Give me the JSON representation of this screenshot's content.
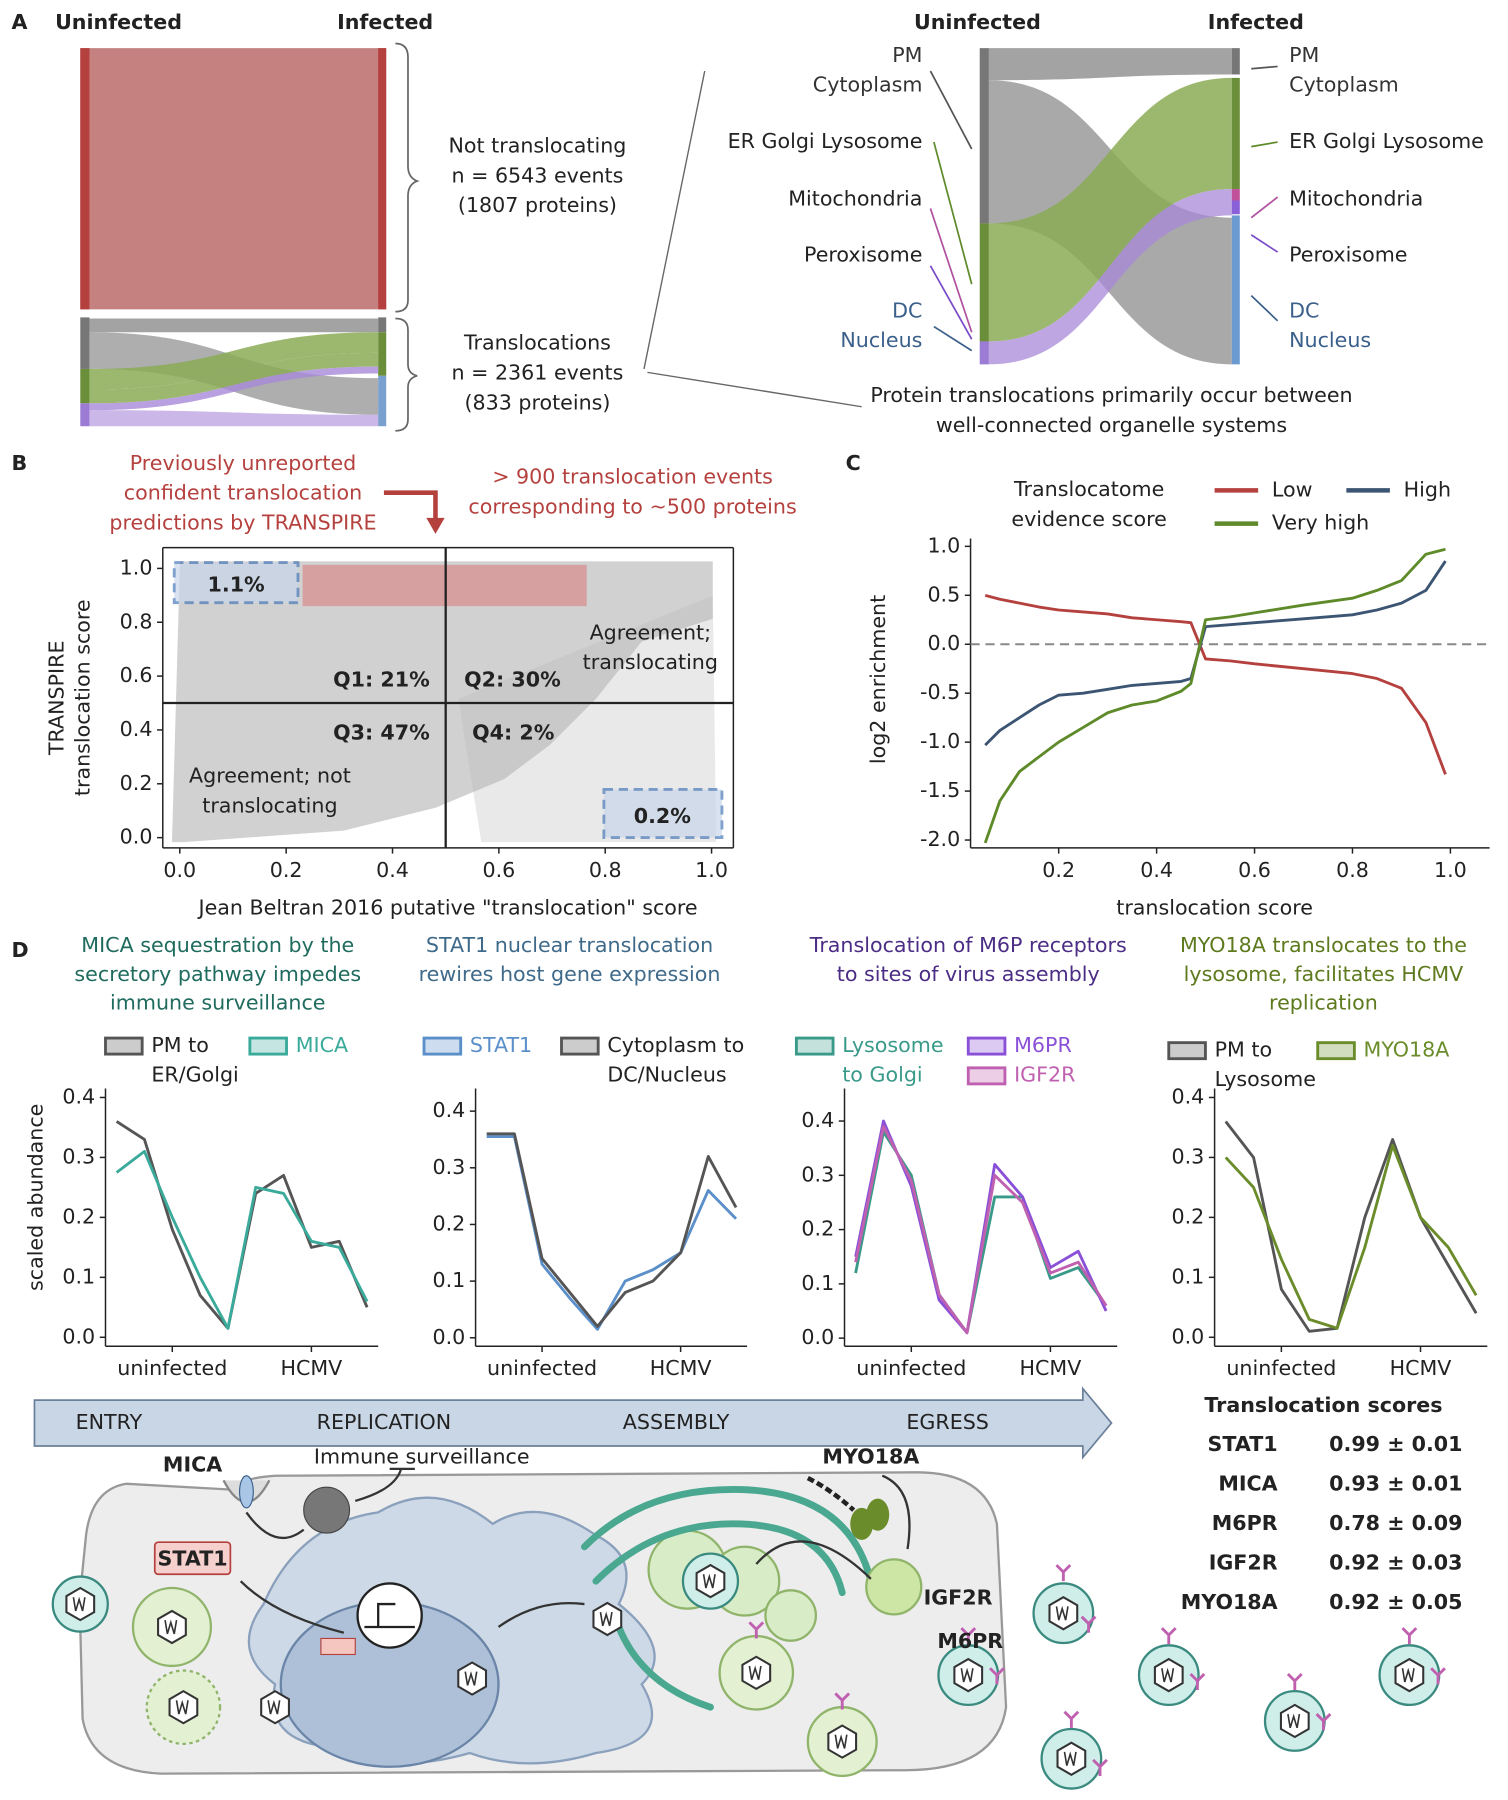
{
  "panel_labels": [
    "A",
    "B",
    "C",
    "D"
  ],
  "panel_a": {
    "left_headers": [
      "Uninfected",
      "Infected"
    ],
    "not_translocating": {
      "title": "Not translocating",
      "events": "n = 6543 events",
      "proteins": "(1807 proteins)",
      "color": "#b5413f"
    },
    "translocations": {
      "title": "Translocations",
      "events": "n = 2361 events",
      "proteins": "(833 proteins)",
      "color": "#3a5f8a"
    },
    "right_headers": [
      "Uninfected",
      "Infected"
    ],
    "compartments": [
      {
        "label": "PM Cytoplasm",
        "color": "#333333"
      },
      {
        "label": "ER Golgi Lysosome",
        "color": "#5e8a2a"
      },
      {
        "label": "Mitochondria",
        "color": "#b050a0"
      },
      {
        "label": "Peroxisome",
        "color": "#7a4cc8"
      },
      {
        "label": "DC Nucleus",
        "color": "#3a5f8a"
      }
    ],
    "caption": "Protein translocations primarily occur between well-connected organelle systems"
  },
  "chart_data": [
    {
      "type": "scatter",
      "xlabel": "Jean Beltran 2016 putative \"translocation\" score",
      "ylabel": [
        "TRANSPIRE",
        "translocation score"
      ],
      "xlim": [
        -0.032,
        1.041
      ],
      "ylim": [
        -0.038,
        1.077
      ],
      "xticks": [
        {
          "value": 0,
          "label": "0.0"
        },
        0.2,
        0.4,
        0.6,
        0.8,
        {
          "value": 1,
          "label": "1.0"
        }
      ],
      "yticks": [
        {
          "value": 0,
          "label": "0.0"
        },
        0.2,
        0.4,
        0.6,
        0.8,
        {
          "value": 1,
          "label": "1.0"
        }
      ],
      "quadrant_lines": {
        "x": 0.5,
        "y": 0.5
      },
      "quadrant_labels": [
        "Q1: 21%",
        "Q2: 30%",
        "Q3: 47%",
        "Q4: 2%"
      ],
      "corner_labels": [
        "1.1%",
        "0.2%"
      ],
      "agreement_labels": [
        "Agreement; translocating",
        "Agreement; not translocating"
      ],
      "notes": [
        "Previously unreported confident translocation predictions by TRANSPIRE",
        "> 900 translocation events corresponding to ~500 proteins"
      ]
    },
    {
      "type": "line",
      "xlabel": "translocation score",
      "ylabel": "log2 enrichment",
      "legend_title": "Translocatome evidence score",
      "x": [
        0.05,
        0.08,
        0.12,
        0.16,
        0.2,
        0.25,
        0.3,
        0.35,
        0.4,
        0.45,
        0.47,
        0.5,
        0.55,
        0.6,
        0.7,
        0.8,
        0.85,
        0.9,
        0.95,
        0.99
      ],
      "series": [
        {
          "name": "Low",
          "color": "#b5413f",
          "values": [
            0.5,
            0.46,
            0.42,
            0.38,
            0.35,
            0.33,
            0.31,
            0.27,
            0.25,
            0.23,
            0.22,
            -0.15,
            -0.17,
            -0.2,
            -0.25,
            -0.3,
            -0.35,
            -0.45,
            -0.8,
            -1.33
          ]
        },
        {
          "name": "High",
          "color": "#3c5573",
          "values": [
            -1.03,
            -0.88,
            -0.75,
            -0.62,
            -0.52,
            -0.5,
            -0.46,
            -0.42,
            -0.4,
            -0.38,
            -0.35,
            0.18,
            0.2,
            0.22,
            0.26,
            0.3,
            0.35,
            0.42,
            0.55,
            0.85
          ]
        },
        {
          "name": "Very high",
          "color": "#5e8a2a",
          "values": [
            -2.03,
            -1.6,
            -1.3,
            -1.15,
            -1.0,
            -0.85,
            -0.7,
            -0.62,
            -0.58,
            -0.48,
            -0.4,
            0.25,
            0.28,
            0.32,
            0.4,
            0.47,
            0.55,
            0.65,
            0.92,
            0.97
          ]
        }
      ],
      "xlim": [
        0.02,
        1.08
      ],
      "ylim": [
        -2.08,
        1.08
      ],
      "xticks": [
        0.2,
        0.4,
        0.6,
        0.8,
        {
          "value": 1,
          "label": "1.0"
        }
      ],
      "yticks": [
        {
          "value": 1,
          "label": "1.0"
        },
        0.5,
        {
          "value": 0,
          "label": "0.0"
        },
        -0.5,
        {
          "value": -1,
          "label": "-1.0"
        },
        -1.5,
        {
          "value": -2,
          "label": "-2.0"
        }
      ],
      "hline": 0
    },
    {
      "type": "line",
      "title": "MICA sequestration by the secretory pathway impedes immune surveillance",
      "title_color": "#1f6b5e",
      "ylabel": "scaled abundance",
      "x": [
        1,
        2,
        3,
        4,
        5,
        6,
        7,
        8,
        9,
        10
      ],
      "series": [
        {
          "name": "PM to ER/Golgi",
          "color": "#555555",
          "values": [
            0.36,
            0.33,
            0.18,
            0.07,
            0.015,
            0.24,
            0.27,
            0.15,
            0.16,
            0.05
          ]
        },
        {
          "name": "MICA",
          "color": "#3aaa9a",
          "values": [
            0.275,
            0.31,
            0.2,
            0.1,
            0.015,
            0.25,
            0.24,
            0.16,
            0.15,
            0.06
          ]
        }
      ],
      "xlim": [
        0.6,
        10.4
      ],
      "ylim": [
        -0.015,
        0.415
      ],
      "xticks": [
        {
          "value": 3,
          "label": "uninfected"
        },
        {
          "value": 8,
          "label": "HCMV"
        }
      ],
      "yticks": [
        {
          "value": 0,
          "label": "0.0"
        },
        0.1,
        0.2,
        0.3,
        0.4
      ]
    },
    {
      "type": "line",
      "title": "STAT1 nuclear translocation rewires host gene expression",
      "title_color": "#3f6a8a",
      "x": [
        1,
        2,
        3,
        4,
        5,
        6,
        7,
        8,
        9,
        10
      ],
      "series": [
        {
          "name": "STAT1",
          "color": "#5b8fc9",
          "values": [
            0.355,
            0.355,
            0.13,
            0.07,
            0.015,
            0.1,
            0.12,
            0.15,
            0.26,
            0.21
          ]
        },
        {
          "name": "Cytoplasm to DC/Nucleus",
          "color": "#555555",
          "values": [
            0.36,
            0.36,
            0.14,
            0.08,
            0.02,
            0.08,
            0.1,
            0.15,
            0.32,
            0.23
          ]
        }
      ],
      "xlim": [
        0.6,
        10.4
      ],
      "ylim": [
        -0.015,
        0.44
      ],
      "xticks": [
        {
          "value": 3,
          "label": "uninfected"
        },
        {
          "value": 8,
          "label": "HCMV"
        }
      ],
      "yticks": [
        {
          "value": 0,
          "label": "0.0"
        },
        0.1,
        0.2,
        0.3,
        0.4
      ]
    },
    {
      "type": "line",
      "title": "Translocation of M6P receptors to sites of virus assembly",
      "title_color": "#4b2d85",
      "x": [
        1,
        2,
        3,
        4,
        5,
        6,
        7,
        8,
        9,
        10
      ],
      "series": [
        {
          "name": "Lysosome to Golgi",
          "color": "#3a9a8a",
          "values": [
            0.12,
            0.38,
            0.3,
            0.08,
            0.01,
            0.26,
            0.26,
            0.11,
            0.13,
            0.06
          ]
        },
        {
          "name": "M6PR",
          "color": "#8a50d8",
          "values": [
            0.15,
            0.4,
            0.28,
            0.07,
            0.01,
            0.32,
            0.26,
            0.13,
            0.16,
            0.05
          ]
        },
        {
          "name": "IGF2R",
          "color": "#c060b0",
          "values": [
            0.14,
            0.39,
            0.29,
            0.08,
            0.01,
            0.3,
            0.25,
            0.12,
            0.14,
            0.06
          ]
        }
      ],
      "xlim": [
        0.6,
        10.4
      ],
      "ylim": [
        -0.015,
        0.46
      ],
      "xticks": [
        {
          "value": 3,
          "label": "uninfected"
        },
        {
          "value": 8,
          "label": "HCMV"
        }
      ],
      "yticks": [
        {
          "value": 0,
          "label": "0.0"
        },
        0.1,
        0.2,
        0.3,
        0.4
      ]
    },
    {
      "type": "line",
      "title": "MYO18A translocates to the lysosome, facilitates HCMV replication",
      "title_color": "#5e7a1e",
      "x": [
        1,
        2,
        3,
        4,
        5,
        6,
        7,
        8,
        9,
        10
      ],
      "series": [
        {
          "name": "PM to Lysosome",
          "color": "#555555",
          "values": [
            0.36,
            0.3,
            0.08,
            0.01,
            0.015,
            0.2,
            0.33,
            0.2,
            0.12,
            0.04
          ]
        },
        {
          "name": "MYO18A",
          "color": "#6a8c2a",
          "values": [
            0.3,
            0.25,
            0.13,
            0.03,
            0.015,
            0.15,
            0.32,
            0.2,
            0.15,
            0.07
          ]
        }
      ],
      "xlim": [
        0.6,
        10.4
      ],
      "ylim": [
        -0.015,
        0.415
      ],
      "xticks": [
        {
          "value": 3,
          "label": "uninfected"
        },
        {
          "value": 8,
          "label": "HCMV"
        }
      ],
      "yticks": [
        {
          "value": 0,
          "label": "0.0"
        },
        0.1,
        0.2,
        0.3,
        0.4
      ]
    }
  ],
  "diagram": {
    "stages": [
      "ENTRY",
      "REPLICATION",
      "ASSEMBLY",
      "EGRESS"
    ],
    "mica": "MICA",
    "immune": "Immune surveillance",
    "stat1": "STAT1",
    "myo18a": "MYO18A",
    "igf2r": "IGF2R",
    "m6pr": "M6PR"
  },
  "translocation_scores": {
    "title": "Translocation scores",
    "rows": [
      {
        "name": "STAT1",
        "value": "0.99 ± 0.01",
        "color": "#b5413f"
      },
      {
        "name": "MICA",
        "value": "0.93 ± 0.01",
        "color": "#3f6a9a"
      },
      {
        "name": "M6PR",
        "value": "0.78 ± 0.09",
        "color": "#7a4ccf"
      },
      {
        "name": "IGF2R",
        "value": "0.92 ± 0.03",
        "color": "#b85aa6"
      },
      {
        "name": "MYO18A",
        "value": "0.92 ± 0.05",
        "color": "#5e7a1e"
      }
    ]
  }
}
